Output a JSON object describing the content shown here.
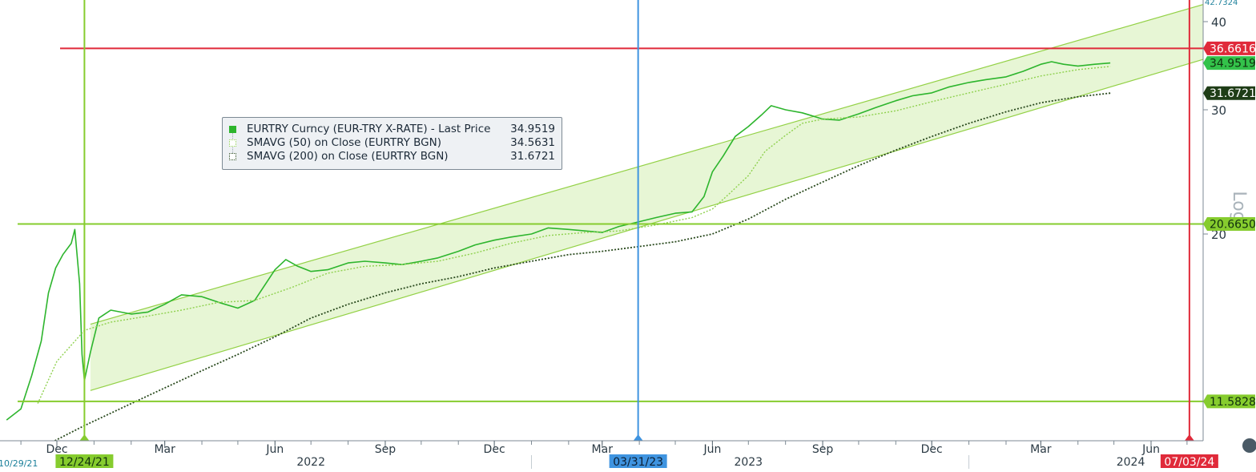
{
  "chart_data": {
    "type": "line",
    "scale": "log",
    "y_axis_label": "Log",
    "yticks": [
      20,
      30,
      40
    ],
    "y_top_label": "42.7324",
    "x_month_ticks": [
      {
        "date": "2021-12-01",
        "label": "Dec"
      },
      {
        "date": "2022-03-01",
        "label": "Mar"
      },
      {
        "date": "2022-06-01",
        "label": "Jun"
      },
      {
        "date": "2022-09-01",
        "label": "Sep"
      },
      {
        "date": "2022-12-01",
        "label": "Dec"
      },
      {
        "date": "2023-03-01",
        "label": "Mar"
      },
      {
        "date": "2023-06-01",
        "label": "Jun"
      },
      {
        "date": "2023-09-01",
        "label": "Sep"
      },
      {
        "date": "2023-12-01",
        "label": "Dec"
      },
      {
        "date": "2024-03-01",
        "label": "Mar"
      },
      {
        "date": "2024-06-01",
        "label": "Jun"
      }
    ],
    "x_year_labels": [
      {
        "date": "2022-07-01",
        "label": "2022"
      },
      {
        "date": "2023-07-01",
        "label": "2023"
      },
      {
        "date": "2024-05-15",
        "label": "2024"
      }
    ],
    "x_left_date_label": "10/29/21",
    "series": [
      {
        "name": "EURTRY Curncy (EUR-TRY X-RATE) - Last Price",
        "last": "34.9519",
        "color": "#2db52d",
        "points": [
          [
            "2021-10-20",
            10.9
          ],
          [
            "2021-11-01",
            11.3
          ],
          [
            "2021-11-10",
            12.6
          ],
          [
            "2021-11-18",
            14.1
          ],
          [
            "2021-11-24",
            16.5
          ],
          [
            "2021-11-30",
            17.9
          ],
          [
            "2021-12-06",
            18.7
          ],
          [
            "2021-12-13",
            19.4
          ],
          [
            "2021-12-16",
            20.3
          ],
          [
            "2021-12-20",
            17.0
          ],
          [
            "2021-12-22",
            13.5
          ],
          [
            "2021-12-24",
            12.4
          ],
          [
            "2021-12-29",
            13.6
          ],
          [
            "2022-01-05",
            15.2
          ],
          [
            "2022-01-15",
            15.6
          ],
          [
            "2022-02-01",
            15.4
          ],
          [
            "2022-02-15",
            15.5
          ],
          [
            "2022-03-01",
            15.9
          ],
          [
            "2022-03-15",
            16.4
          ],
          [
            "2022-04-01",
            16.3
          ],
          [
            "2022-04-15",
            16.0
          ],
          [
            "2022-05-01",
            15.7
          ],
          [
            "2022-05-15",
            16.1
          ],
          [
            "2022-06-01",
            17.8
          ],
          [
            "2022-06-10",
            18.4
          ],
          [
            "2022-06-20",
            18.0
          ],
          [
            "2022-07-01",
            17.7
          ],
          [
            "2022-07-15",
            17.8
          ],
          [
            "2022-08-01",
            18.2
          ],
          [
            "2022-08-15",
            18.3
          ],
          [
            "2022-09-01",
            18.2
          ],
          [
            "2022-09-15",
            18.1
          ],
          [
            "2022-10-01",
            18.3
          ],
          [
            "2022-10-15",
            18.5
          ],
          [
            "2022-11-01",
            18.9
          ],
          [
            "2022-11-15",
            19.3
          ],
          [
            "2022-12-01",
            19.6
          ],
          [
            "2022-12-15",
            19.8
          ],
          [
            "2023-01-01",
            20.0
          ],
          [
            "2023-01-15",
            20.4
          ],
          [
            "2023-02-01",
            20.3
          ],
          [
            "2023-02-15",
            20.2
          ],
          [
            "2023-03-01",
            20.1
          ],
          [
            "2023-03-15",
            20.5
          ],
          [
            "2023-03-31",
            20.8
          ],
          [
            "2023-04-15",
            21.1
          ],
          [
            "2023-05-01",
            21.4
          ],
          [
            "2023-05-15",
            21.5
          ],
          [
            "2023-05-25",
            22.6
          ],
          [
            "2023-06-01",
            24.5
          ],
          [
            "2023-06-10",
            25.8
          ],
          [
            "2023-06-20",
            27.5
          ],
          [
            "2023-07-01",
            28.4
          ],
          [
            "2023-07-12",
            29.5
          ],
          [
            "2023-07-20",
            30.4
          ],
          [
            "2023-08-01",
            30.0
          ],
          [
            "2023-08-15",
            29.7
          ],
          [
            "2023-09-01",
            29.1
          ],
          [
            "2023-09-15",
            29.0
          ],
          [
            "2023-10-01",
            29.6
          ],
          [
            "2023-10-15",
            30.2
          ],
          [
            "2023-11-01",
            30.9
          ],
          [
            "2023-11-15",
            31.4
          ],
          [
            "2023-12-01",
            31.7
          ],
          [
            "2023-12-15",
            32.3
          ],
          [
            "2024-01-01",
            32.8
          ],
          [
            "2024-01-15",
            33.1
          ],
          [
            "2024-02-01",
            33.4
          ],
          [
            "2024-02-15",
            34.0
          ],
          [
            "2024-03-01",
            34.8
          ],
          [
            "2024-03-10",
            35.1
          ],
          [
            "2024-03-20",
            34.8
          ],
          [
            "2024-04-01",
            34.6
          ],
          [
            "2024-04-15",
            34.8
          ],
          [
            "2024-04-28",
            34.9519
          ]
        ]
      },
      {
        "name": "SMAVG (50) on Close (EURTRY BGN)",
        "last": "34.5631",
        "color": "#8fd14f",
        "dash": "2,2",
        "points": [
          [
            "2021-11-15",
            11.5
          ],
          [
            "2021-12-01",
            13.2
          ],
          [
            "2021-12-24",
            14.6
          ],
          [
            "2022-01-15",
            15.0
          ],
          [
            "2022-02-15",
            15.3
          ],
          [
            "2022-03-15",
            15.6
          ],
          [
            "2022-04-15",
            16.0
          ],
          [
            "2022-05-15",
            16.1
          ],
          [
            "2022-06-15",
            16.8
          ],
          [
            "2022-07-15",
            17.6
          ],
          [
            "2022-08-15",
            18.0
          ],
          [
            "2022-09-15",
            18.1
          ],
          [
            "2022-10-15",
            18.3
          ],
          [
            "2022-11-15",
            18.8
          ],
          [
            "2022-12-15",
            19.4
          ],
          [
            "2023-01-15",
            19.9
          ],
          [
            "2023-02-15",
            20.1
          ],
          [
            "2023-03-15",
            20.2
          ],
          [
            "2023-04-15",
            20.6
          ],
          [
            "2023-05-15",
            21.1
          ],
          [
            "2023-06-01",
            21.7
          ],
          [
            "2023-06-15",
            22.8
          ],
          [
            "2023-07-01",
            24.2
          ],
          [
            "2023-07-15",
            26.2
          ],
          [
            "2023-08-01",
            27.6
          ],
          [
            "2023-08-15",
            28.7
          ],
          [
            "2023-09-01",
            29.1
          ],
          [
            "2023-09-15",
            29.2
          ],
          [
            "2023-10-01",
            29.3
          ],
          [
            "2023-11-01",
            29.9
          ],
          [
            "2023-12-01",
            30.8
          ],
          [
            "2024-01-01",
            31.7
          ],
          [
            "2024-02-01",
            32.6
          ],
          [
            "2024-03-01",
            33.5
          ],
          [
            "2024-04-01",
            34.2
          ],
          [
            "2024-04-28",
            34.5631
          ]
        ]
      },
      {
        "name": "SMAVG (200) on Close (EURTRY BGN)",
        "last": "31.6721",
        "color": "#2a4a1e",
        "dash": "2,2",
        "points": [
          [
            "2021-11-15",
            9.9
          ],
          [
            "2021-12-24",
            10.7
          ],
          [
            "2022-02-01",
            11.5
          ],
          [
            "2022-03-01",
            12.1
          ],
          [
            "2022-04-01",
            12.8
          ],
          [
            "2022-05-01",
            13.5
          ],
          [
            "2022-06-01",
            14.3
          ],
          [
            "2022-07-01",
            15.2
          ],
          [
            "2022-08-01",
            15.9
          ],
          [
            "2022-09-01",
            16.5
          ],
          [
            "2022-10-01",
            17.0
          ],
          [
            "2022-11-01",
            17.4
          ],
          [
            "2022-12-01",
            17.9
          ],
          [
            "2023-01-01",
            18.3
          ],
          [
            "2023-02-01",
            18.7
          ],
          [
            "2023-03-01",
            18.9
          ],
          [
            "2023-04-01",
            19.2
          ],
          [
            "2023-05-01",
            19.5
          ],
          [
            "2023-06-01",
            20.0
          ],
          [
            "2023-07-01",
            21.0
          ],
          [
            "2023-08-01",
            22.4
          ],
          [
            "2023-09-01",
            23.7
          ],
          [
            "2023-10-01",
            25.0
          ],
          [
            "2023-11-01",
            26.3
          ],
          [
            "2023-12-01",
            27.5
          ],
          [
            "2024-01-01",
            28.7
          ],
          [
            "2024-02-01",
            29.8
          ],
          [
            "2024-03-01",
            30.7
          ],
          [
            "2024-04-01",
            31.3
          ],
          [
            "2024-04-28",
            31.6721
          ]
        ]
      }
    ],
    "trend_channel": {
      "color": "#93d146",
      "fill": "#e7f6d5",
      "upper": [
        [
          "2021-12-29",
          14.9
        ],
        [
          "2024-07-25",
          42.8
        ]
      ],
      "lower": [
        [
          "2021-12-29",
          12.0
        ],
        [
          "2024-07-25",
          35.8
        ]
      ]
    },
    "horizontal_lines": [
      {
        "value": 36.6616,
        "label": "36.6616",
        "color": "#e02a3a"
      },
      {
        "value": 20.665,
        "label": "20.6650",
        "color": "#86cc2e"
      },
      {
        "value": 11.5828,
        "label": "11.5828",
        "color": "#86cc2e"
      }
    ],
    "vertical_lines": [
      {
        "date": "2021-12-24",
        "label": "12/24/21",
        "color": "#86cc2e"
      },
      {
        "date": "2023-03-31",
        "label": "03/31/23",
        "color": "#3f94e0"
      },
      {
        "date": "2024-07-03",
        "label": "07/03/24",
        "color": "#e02a3a"
      }
    ],
    "price_tags": [
      {
        "value": 34.9519,
        "label": "34.9519",
        "color": "#33c24a",
        "text_color": "#10300e"
      },
      {
        "value": 31.6721,
        "label": "31.6721",
        "color": "#1f3d17",
        "text_color": "#ffffff"
      }
    ]
  }
}
